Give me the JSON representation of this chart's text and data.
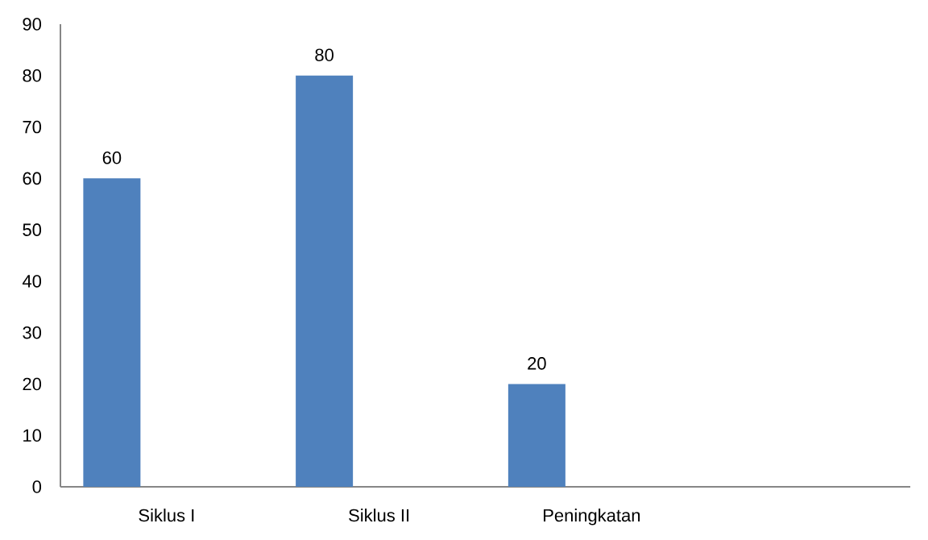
{
  "chart_data": {
    "type": "bar",
    "categories": [
      "Siklus I",
      "Siklus II",
      "Peningkatan",
      null
    ],
    "values": [
      60,
      80,
      20,
      null
    ],
    "color": "#4f81bd",
    "ylim": [
      0,
      90
    ],
    "yticks": [
      0,
      10,
      20,
      30,
      40,
      50,
      60,
      70,
      80,
      90
    ],
    "data_labels": true
  }
}
